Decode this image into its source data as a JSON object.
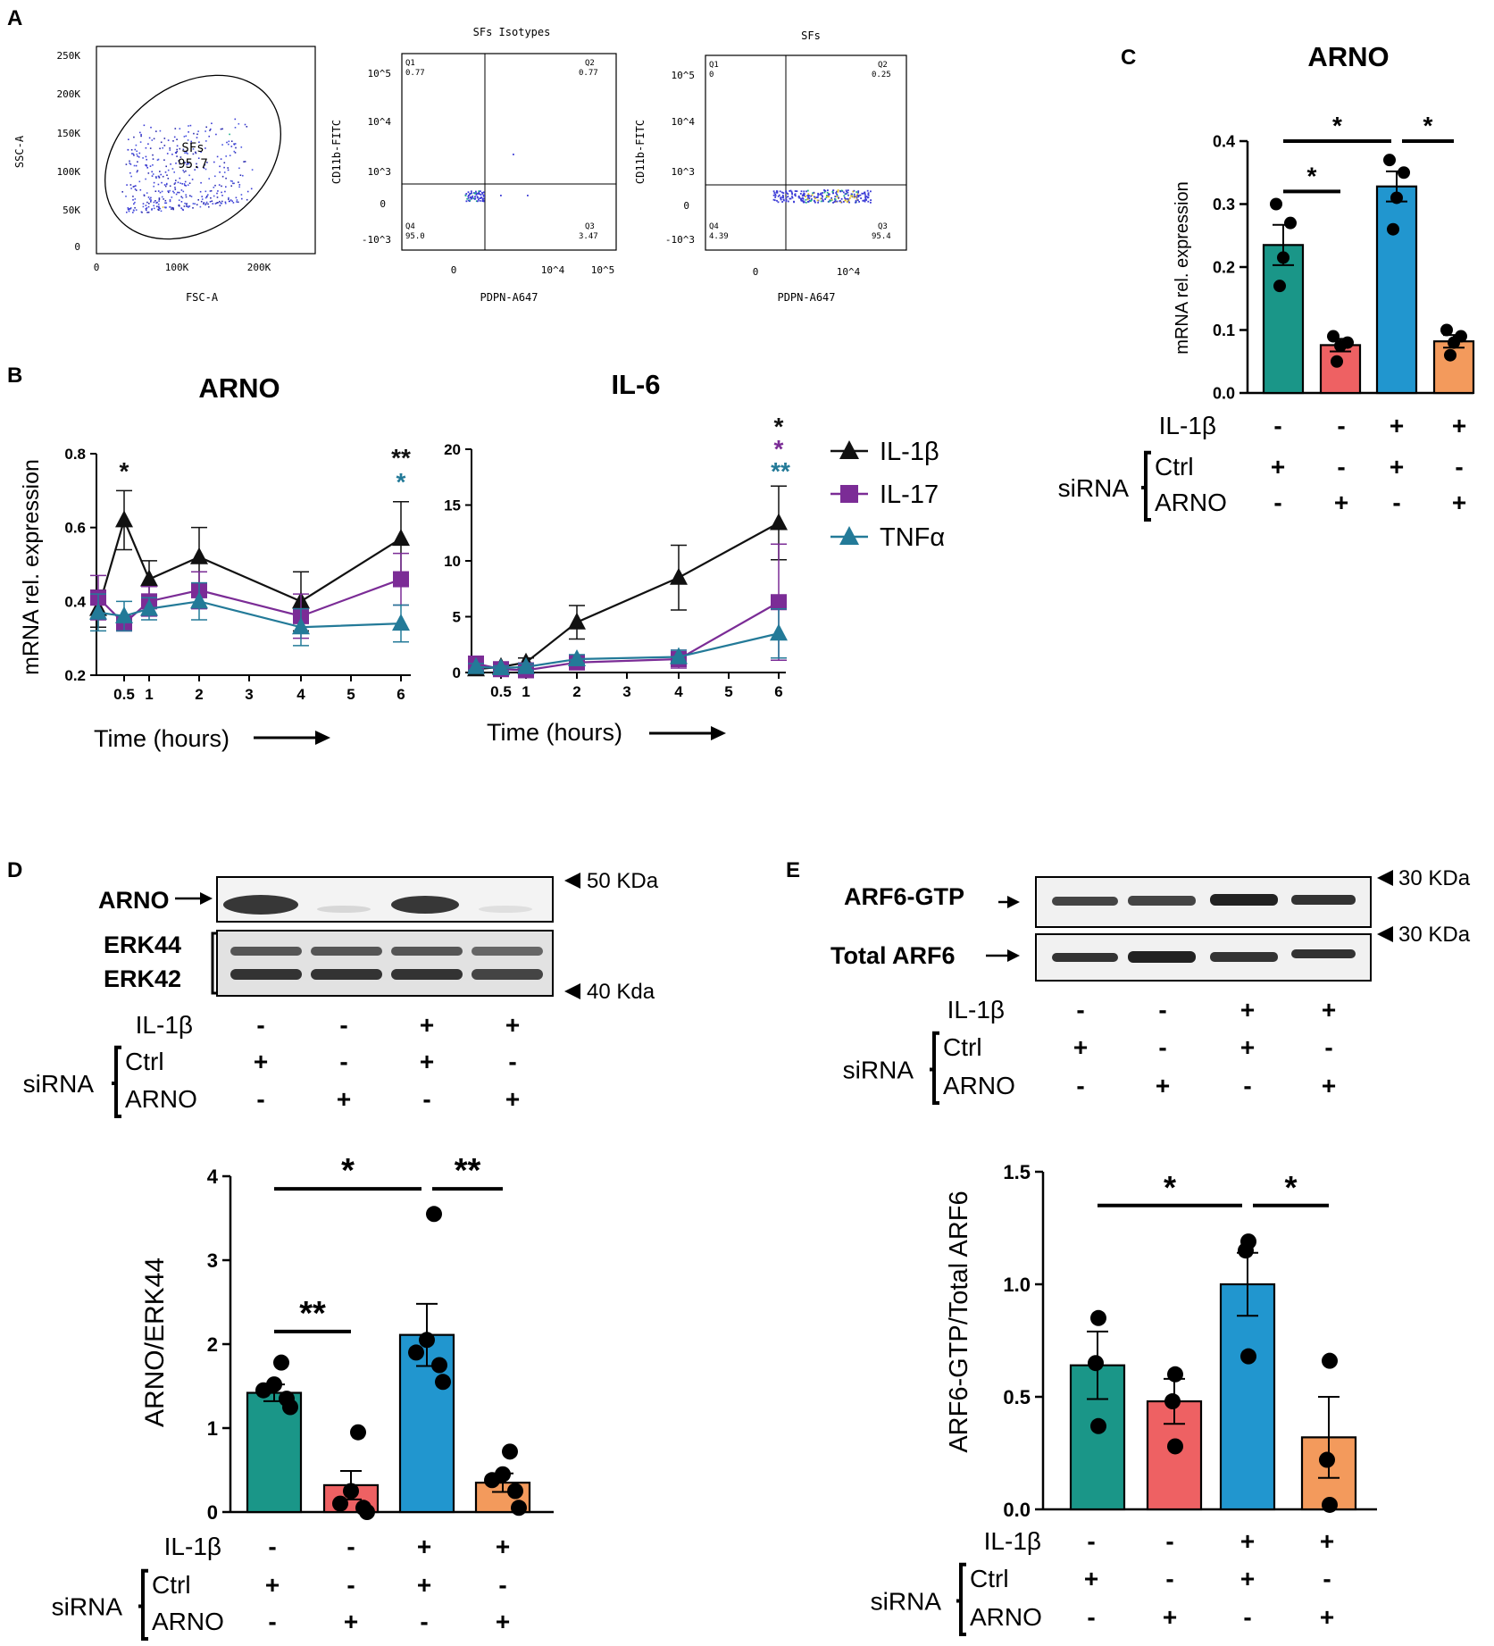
{
  "colors": {
    "teal": "#1a9688",
    "salmon": "#ee6163",
    "blue": "#2196cf",
    "peach": "#f39a5c",
    "black": "#111111",
    "purple": "#7b2c96",
    "tnf": "#237a98"
  },
  "panel_letters": {
    "a": "A",
    "b": "B",
    "c": "C",
    "d": "D",
    "e": "E"
  },
  "panelA": {
    "plot1": {
      "gate_label": "SFs",
      "gate_value": "95.7",
      "xlabel": "FSC-A",
      "ylabel": "SSC-A",
      "yticks": [
        "250K",
        "200K",
        "150K",
        "100K",
        "50K",
        "0"
      ],
      "xticks": [
        "0",
        "100K",
        "200K"
      ]
    },
    "plot2": {
      "title": "SFs Isotypes",
      "xlabel": "PDPN-A647",
      "ylabel": "CD11b-FITC",
      "q1": "Q1",
      "q1v": "0.77",
      "q2": "Q2",
      "q2v": "0.77",
      "q3": "Q3",
      "q3v": "3.47",
      "q4": "Q4",
      "q4v": "95.0",
      "yticks": [
        "10^5",
        "10^4",
        "10^3",
        "0",
        "-10^3"
      ],
      "xticks": [
        "0",
        "10^4",
        "10^5"
      ]
    },
    "plot3": {
      "title": "SFs",
      "xlabel": "PDPN-A647",
      "ylabel": "CD11b-FITC",
      "q1": "Q1",
      "q1v": "0",
      "q2": "Q2",
      "q2v": "0.25",
      "q3": "Q3",
      "q3v": "95.4",
      "q4": "Q4",
      "q4v": "4.39",
      "yticks": [
        "10^5",
        "10^4",
        "10^3",
        "0",
        "-10^3"
      ],
      "xticks": [
        "0",
        "10^4"
      ]
    }
  },
  "panelB": {
    "legend": [
      "IL-1β",
      "IL-17",
      "TNFα"
    ],
    "xlabel": "Time (hours)",
    "ylabel": "mRNA rel. expression"
  },
  "panelC": {
    "conditions": {
      "il1b_label": "IL-1β",
      "sirna_label": "siRNA",
      "ctrl_label": "Ctrl",
      "arno_label": "ARNO",
      "il1b": [
        "-",
        "-",
        "+",
        "+"
      ],
      "ctrl": [
        "+",
        "-",
        "+",
        "-"
      ],
      "arno": [
        "-",
        "+",
        "-",
        "+"
      ]
    }
  },
  "panelD": {
    "blot": {
      "arno": "ARNO",
      "erk44": "ERK44",
      "erk42": "ERK42",
      "marker_top": "50 KDa",
      "marker_bottom": "40 Kda"
    },
    "conditions": {
      "il1b_label": "IL-1β",
      "sirna_label": "siRNA",
      "ctrl_label": "Ctrl",
      "arno_label": "ARNO",
      "il1b": [
        "-",
        "-",
        "+",
        "+"
      ],
      "ctrl": [
        "+",
        "-",
        "+",
        "-"
      ],
      "arno": [
        "-",
        "+",
        "-",
        "+"
      ]
    },
    "conditions2": {
      "il1b": [
        "-",
        "-",
        "+",
        "+"
      ],
      "ctrl": [
        "+",
        "-",
        "+",
        "-"
      ],
      "arno": [
        "-",
        "+",
        "-",
        "+"
      ]
    }
  },
  "panelE": {
    "blot": {
      "gtp": "ARF6-GTP",
      "total": "Total ARF6",
      "marker_top": "30 KDa",
      "marker_bottom": "30 KDa"
    },
    "conditions": {
      "il1b_label": "IL-1β",
      "sirna_label": "siRNA",
      "ctrl_label": "Ctrl",
      "arno_label": "ARNO",
      "il1b": [
        "-",
        "-",
        "+",
        "+"
      ],
      "ctrl": [
        "+",
        "-",
        "+",
        "-"
      ],
      "arno": [
        "-",
        "+",
        "-",
        "+"
      ]
    },
    "conditions2": {
      "il1b": [
        "-",
        "-",
        "+",
        "+"
      ],
      "ctrl": [
        "+",
        "-",
        "+",
        "-"
      ],
      "arno": [
        "-",
        "+",
        "-",
        "+"
      ]
    }
  },
  "chart_data": [
    {
      "id": "B_ARNO",
      "type": "line",
      "title": "ARNO",
      "xlabel": "Time (hours)",
      "ylabel": "mRNA rel. expression",
      "xlim": [
        0,
        6
      ],
      "ylim": [
        0.2,
        0.8
      ],
      "x_ticks": [
        "0.5",
        "1",
        "2",
        "3",
        "4",
        "5",
        "6"
      ],
      "y_ticks": [
        "0.2",
        "0.4",
        "0.6",
        "0.8"
      ],
      "x": [
        0,
        0.5,
        1,
        2,
        4,
        6
      ],
      "series": [
        {
          "name": "IL-1β",
          "values": [
            0.38,
            0.62,
            0.46,
            0.52,
            0.4,
            0.57
          ],
          "err": [
            0.05,
            0.08,
            0.05,
            0.08,
            0.08,
            0.1
          ]
        },
        {
          "name": "IL-17",
          "values": [
            0.41,
            0.34,
            0.4,
            0.43,
            0.36,
            0.46
          ],
          "err": [
            0.06,
            0.02,
            0.04,
            0.05,
            0.06,
            0.07
          ]
        },
        {
          "name": "TNFα",
          "values": [
            0.37,
            0.36,
            0.38,
            0.4,
            0.33,
            0.34
          ],
          "err": [
            0.05,
            0.04,
            0.03,
            0.05,
            0.05,
            0.05
          ]
        }
      ],
      "annotations": [
        {
          "x": 0.5,
          "text": "*",
          "series": "IL-1β"
        },
        {
          "x": 6,
          "text": "**",
          "series": "IL-1β"
        },
        {
          "x": 6,
          "text": "*",
          "series": "TNFα"
        }
      ]
    },
    {
      "id": "B_IL6",
      "type": "line",
      "title": "IL-6",
      "xlabel": "Time (hours)",
      "ylabel": "",
      "xlim": [
        0,
        6
      ],
      "ylim": [
        0,
        20
      ],
      "x_ticks": [
        "0.5",
        "1",
        "2",
        "3",
        "4",
        "5",
        "6"
      ],
      "y_ticks": [
        "0",
        "5",
        "10",
        "15",
        "20"
      ],
      "x": [
        0,
        0.5,
        1,
        2,
        4,
        6
      ],
      "series": [
        {
          "name": "IL-1β",
          "values": [
            0.3,
            0.5,
            0.9,
            4.5,
            8.5,
            13.4
          ],
          "err": [
            0.2,
            0.3,
            0.4,
            1.5,
            2.9,
            3.3
          ]
        },
        {
          "name": "IL-17",
          "values": [
            0.8,
            0.3,
            0.2,
            0.9,
            1.2,
            6.3
          ],
          "err": [
            0.4,
            0.2,
            0.2,
            0.3,
            0.8,
            5.2
          ]
        },
        {
          "name": "TNFα",
          "values": [
            0.5,
            0.4,
            0.5,
            1.2,
            1.4,
            3.5
          ],
          "err": [
            0.3,
            0.2,
            0.3,
            0.4,
            0.6,
            2.2
          ]
        }
      ],
      "annotations": [
        {
          "x": 6,
          "text": "*",
          "series": "IL-1β"
        },
        {
          "x": 6,
          "text": "*",
          "series": "IL-17"
        },
        {
          "x": 6,
          "text": "**",
          "series": "TNFα"
        }
      ]
    },
    {
      "id": "C",
      "type": "bar",
      "title": "ARNO",
      "ylabel": "mRNA rel. expression",
      "ylim": [
        0,
        0.4
      ],
      "y_ticks": [
        "0.0",
        "0.1",
        "0.2",
        "0.3",
        "0.4"
      ],
      "values": [
        0.235,
        0.076,
        0.328,
        0.082
      ],
      "err": [
        0.032,
        0.01,
        0.024,
        0.01
      ],
      "points": [
        [
          0.3,
          0.27,
          0.215,
          0.17
        ],
        [
          0.09,
          0.08,
          0.075,
          0.05
        ],
        [
          0.37,
          0.35,
          0.31,
          0.26
        ],
        [
          0.1,
          0.09,
          0.08,
          0.06
        ]
      ],
      "significance": [
        {
          "from": 0,
          "to": 1,
          "y": 0.32,
          "text": "*"
        },
        {
          "from": 0,
          "to": 2,
          "y": 0.4,
          "text": "*"
        },
        {
          "from": 2,
          "to": 3,
          "y": 0.4,
          "text": "*"
        }
      ]
    },
    {
      "id": "D",
      "type": "bar",
      "title": "",
      "ylabel": "ARNO/ERK44",
      "ylim": [
        0,
        4
      ],
      "y_ticks": [
        "0",
        "1",
        "2",
        "3",
        "4"
      ],
      "values": [
        1.42,
        0.32,
        2.11,
        0.35
      ],
      "err": [
        0.1,
        0.17,
        0.37,
        0.11
      ],
      "points": [
        [
          1.78,
          1.52,
          1.45,
          1.35,
          1.25
        ],
        [
          0.95,
          0.25,
          0.1,
          0.05,
          0.0
        ],
        [
          3.55,
          2.05,
          1.9,
          1.75,
          1.55
        ],
        [
          0.72,
          0.45,
          0.38,
          0.25,
          0.05
        ]
      ],
      "significance": [
        {
          "from": 0,
          "to": 1,
          "y": 2.15,
          "text": "**"
        },
        {
          "from": 0,
          "to": 2,
          "y": 3.85,
          "text": "*"
        },
        {
          "from": 2,
          "to": 3,
          "y": 3.85,
          "text": "**"
        }
      ]
    },
    {
      "id": "E",
      "type": "bar",
      "title": "",
      "ylabel": "ARF6-GTP/Total ARF6",
      "ylim": [
        0,
        1.5
      ],
      "y_ticks": [
        "0.0",
        "0.5",
        "1.0",
        "1.5"
      ],
      "values": [
        0.64,
        0.48,
        1.0,
        0.32
      ],
      "err": [
        0.15,
        0.1,
        0.14,
        0.18
      ],
      "points": [
        [
          0.85,
          0.65,
          0.37
        ],
        [
          0.6,
          0.48,
          0.28
        ],
        [
          1.19,
          1.15,
          0.68
        ],
        [
          0.66,
          0.22,
          0.02
        ]
      ],
      "significance": [
        {
          "from": 0,
          "to": 2,
          "y": 1.35,
          "text": "*"
        },
        {
          "from": 2,
          "to": 3,
          "y": 1.35,
          "text": "*"
        }
      ]
    }
  ]
}
